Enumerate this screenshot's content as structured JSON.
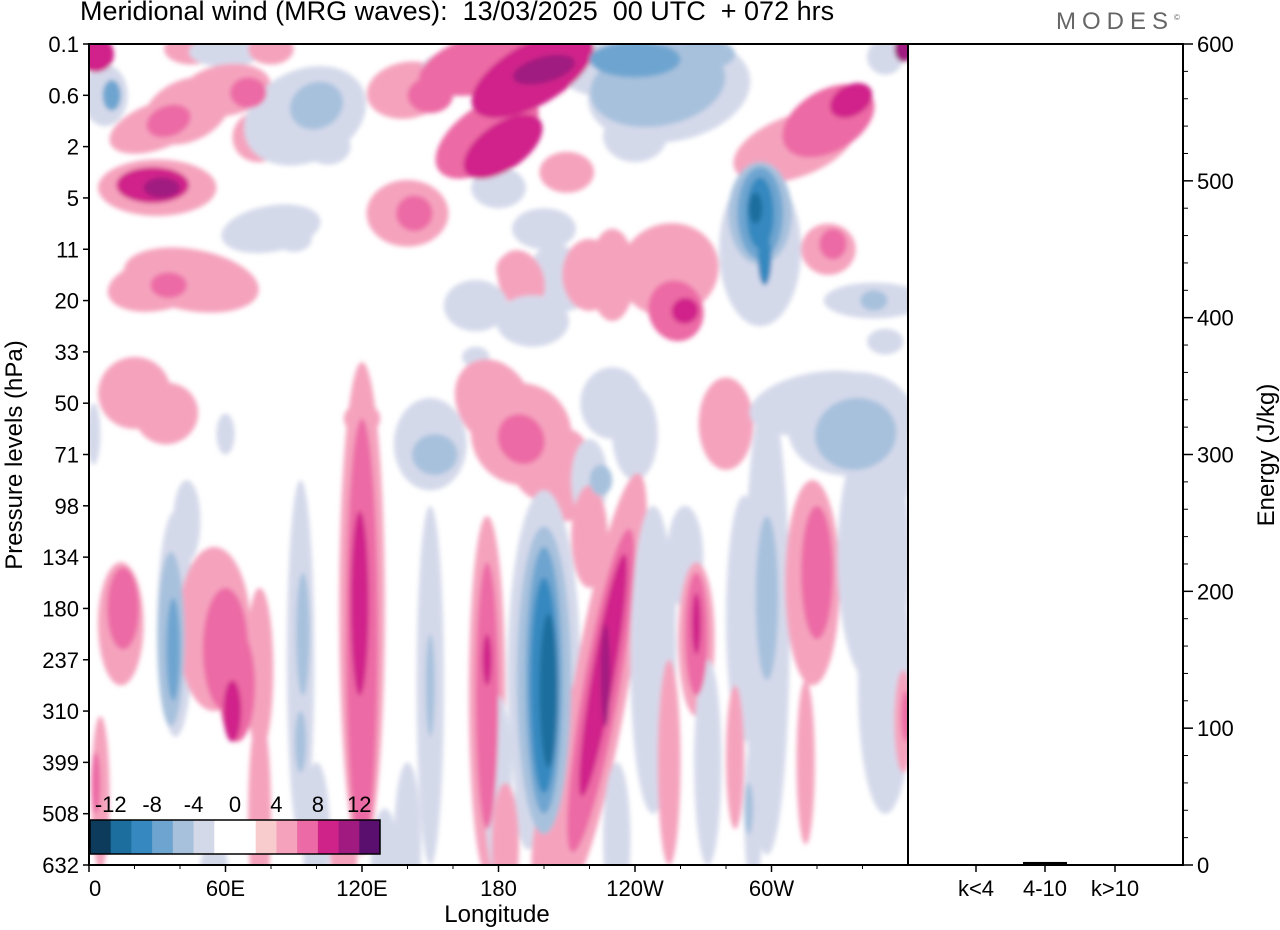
{
  "title": "Meridional wind (MRG waves):  13/03/2025  00 UTC  + 072 hrs",
  "logo": "MODES",
  "chart_data": [
    {
      "type": "heatmap",
      "xlabel": "Longitude",
      "ylabel": "Pressure levels (hPa)",
      "x_ticks": [
        "0",
        "60E",
        "120E",
        "180",
        "120W",
        "60W"
      ],
      "y_ticks": [
        "0.1",
        "0.6",
        "2",
        "5",
        "11",
        "20",
        "33",
        "50",
        "71",
        "98",
        "134",
        "180",
        "237",
        "310",
        "399",
        "508",
        "632"
      ],
      "colorbar": {
        "labels": [
          "-12",
          "-8",
          "-4",
          "0",
          "4",
          "8",
          "12"
        ],
        "colors": [
          "#0d3b5c",
          "#1b6e9e",
          "#3589c0",
          "#6ea5d0",
          "#a7c1dd",
          "#d4d9ea",
          "#ffffff",
          "#ffffff",
          "#f8cccc",
          "#f5a3bd",
          "#ec6aa5",
          "#d0238a",
          "#a01a80",
          "#5a0f6e"
        ]
      },
      "features": [
        {
          "lon": 34,
          "level": "180",
          "value": -8
        },
        {
          "lon": 120,
          "level": "134",
          "value": 8
        },
        {
          "lon": 200,
          "level": "237",
          "value": -12
        },
        {
          "lon": 225,
          "level": "237",
          "value": 8
        },
        {
          "lon": 295,
          "level": "5",
          "value": -12
        },
        {
          "lon": 35,
          "level": "5",
          "value": 8
        },
        {
          "lon": 200,
          "level": "0.1",
          "value": 8
        }
      ]
    },
    {
      "type": "bar",
      "ylabel": "Energy (J/kg)",
      "ylim": [
        0,
        600
      ],
      "y_ticks": [
        "0",
        "100",
        "200",
        "300",
        "400",
        "500",
        "600"
      ],
      "categories": [
        "k<4",
        "4-10",
        "k>10"
      ],
      "values": [
        0,
        1.5,
        0
      ]
    }
  ]
}
